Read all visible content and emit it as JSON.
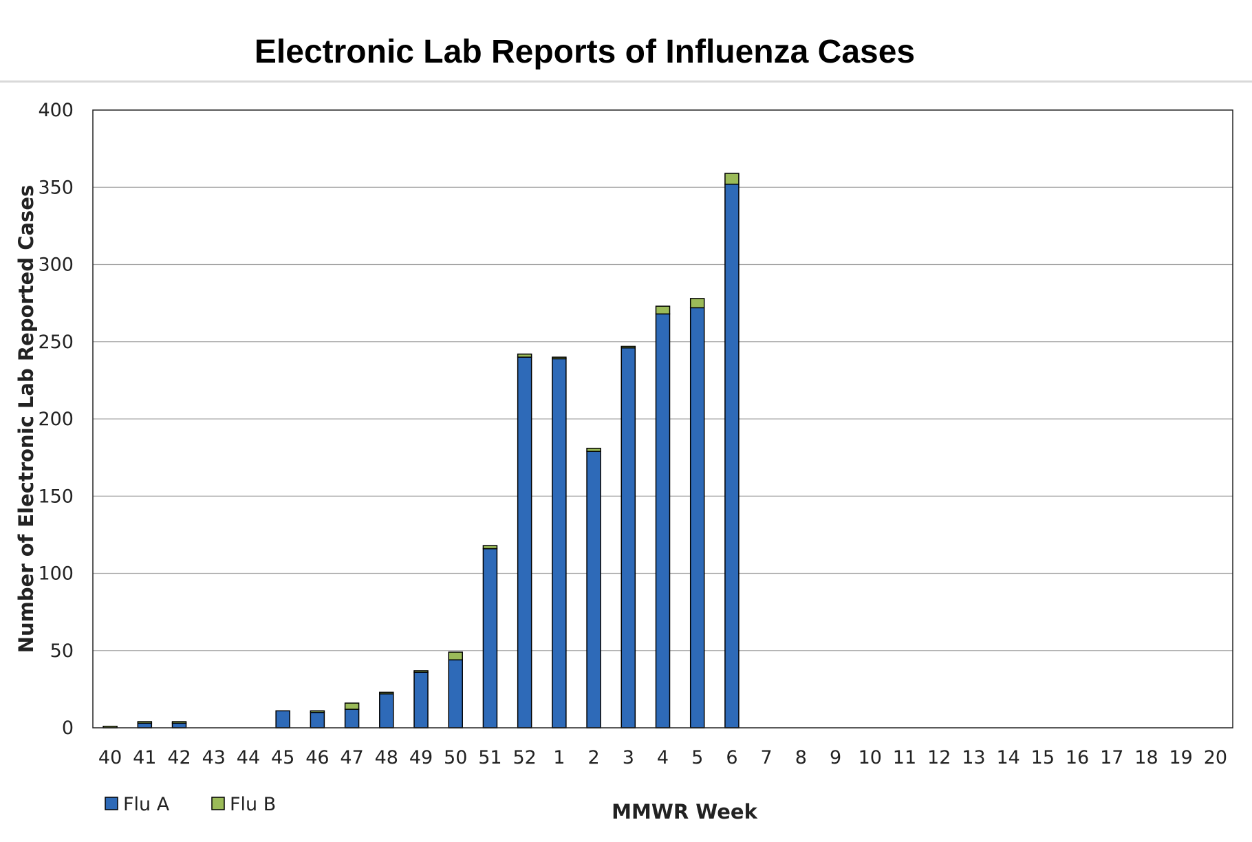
{
  "chart_data": {
    "type": "bar",
    "stacked": true,
    "title": "Electronic Lab Reports of Influenza Cases",
    "xlabel": "MMWR Week",
    "ylabel": "Number of Electronic Lab Reported Cases",
    "ylim": [
      0,
      400
    ],
    "yticks": [
      0,
      50,
      100,
      150,
      200,
      250,
      300,
      350,
      400
    ],
    "grid": true,
    "legend_position": "bottom-left",
    "categories": [
      "40",
      "41",
      "42",
      "43",
      "44",
      "45",
      "46",
      "47",
      "48",
      "49",
      "50",
      "51",
      "52",
      "1",
      "2",
      "3",
      "4",
      "5",
      "6",
      "7",
      "8",
      "9",
      "10",
      "11",
      "12",
      "13",
      "14",
      "15",
      "16",
      "17",
      "18",
      "19",
      "20"
    ],
    "series": [
      {
        "name": "Flu A",
        "color": "#2e6ab8",
        "values": [
          0,
          3,
          3,
          0,
          0,
          11,
          10,
          12,
          22,
          36,
          44,
          116,
          240,
          239,
          179,
          246,
          268,
          272,
          352,
          0,
          0,
          0,
          0,
          0,
          0,
          0,
          0,
          0,
          0,
          0,
          0,
          0,
          0
        ]
      },
      {
        "name": "Flu B",
        "color": "#9bbb59",
        "values": [
          1,
          1,
          1,
          0,
          0,
          0,
          1,
          4,
          1,
          1,
          5,
          2,
          2,
          1,
          2,
          1,
          5,
          6,
          7,
          0,
          0,
          0,
          0,
          0,
          0,
          0,
          0,
          0,
          0,
          0,
          0,
          0,
          0
        ]
      }
    ]
  }
}
